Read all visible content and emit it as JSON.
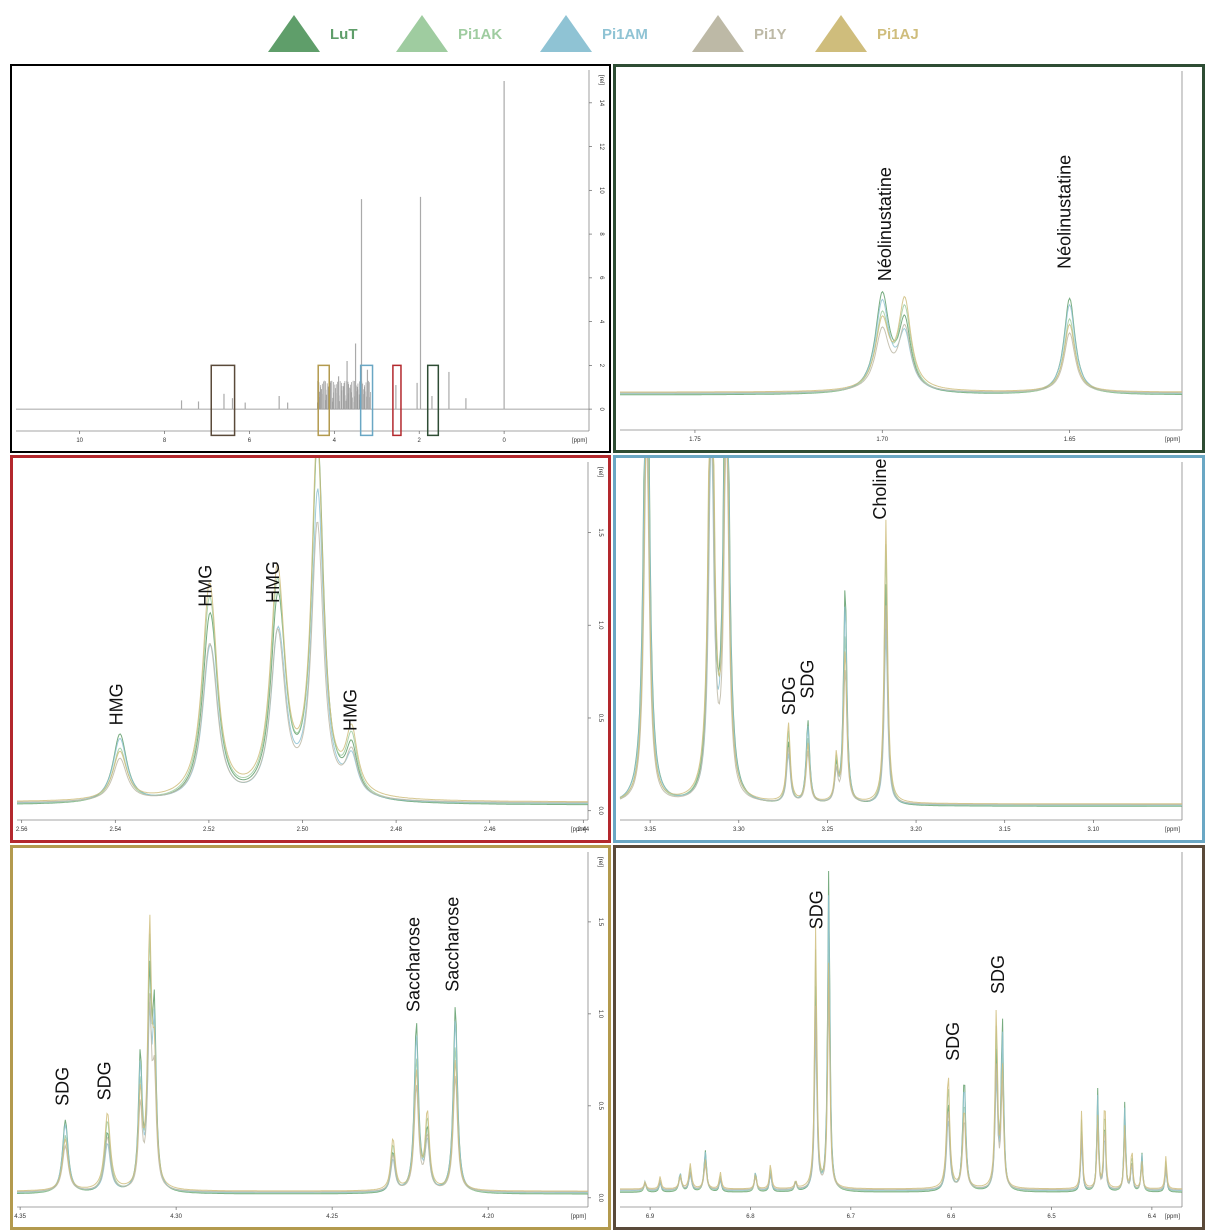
{
  "legend": [
    {
      "name": "LuT",
      "color": "#5f9e6a"
    },
    {
      "name": "Pi1AK",
      "color": "#9fcca0"
    },
    {
      "name": "Pi1AM",
      "color": "#8fc3d4"
    },
    {
      "name": "Pi1Y",
      "color": "#bdb9a6"
    },
    {
      "name": "Pi1AJ",
      "color": "#cfbd7c"
    }
  ],
  "chart_data": [
    {
      "type": "line",
      "panel": "overview",
      "border_color": "#000000",
      "x_ticks": [
        "10",
        "8",
        "6",
        "4",
        "2",
        "0"
      ],
      "x_unit": "[ppm]",
      "xlim": [
        11.5,
        -2
      ],
      "y_ticks": [
        "0",
        "2",
        "4",
        "6",
        "8",
        "10",
        "12",
        "14"
      ],
      "y_unit": "[rel]",
      "ylim": [
        -1,
        15.5
      ],
      "peaks": [
        {
          "x": 7.6,
          "y": 0.4
        },
        {
          "x": 7.2,
          "y": 0.35
        },
        {
          "x": 6.9,
          "y": 0.4
        },
        {
          "x": 6.6,
          "y": 0.7
        },
        {
          "x": 6.4,
          "y": 0.5
        },
        {
          "x": 6.1,
          "y": 0.3
        },
        {
          "x": 5.3,
          "y": 0.6
        },
        {
          "x": 5.1,
          "y": 0.3
        },
        {
          "x": 4.3,
          "y": 0.9
        },
        {
          "x": 4.1,
          "y": 1.2
        },
        {
          "x": 3.9,
          "y": 1.5
        },
        {
          "x": 3.7,
          "y": 2.2
        },
        {
          "x": 3.5,
          "y": 3.0
        },
        {
          "x": 3.36,
          "y": 9.6
        },
        {
          "x": 3.22,
          "y": 1.8
        },
        {
          "x": 2.55,
          "y": 1.1
        },
        {
          "x": 2.05,
          "y": 1.2
        },
        {
          "x": 1.97,
          "y": 9.7
        },
        {
          "x": 1.7,
          "y": 0.6
        },
        {
          "x": 1.3,
          "y": 1.7
        },
        {
          "x": 0.9,
          "y": 0.5
        },
        {
          "x": 0.0,
          "y": 15.0
        }
      ],
      "regions": [
        {
          "from": 6.9,
          "to": 6.35,
          "color": "#5a4a3a"
        },
        {
          "from": 4.38,
          "to": 4.12,
          "color": "#b39a4e"
        },
        {
          "from": 3.38,
          "to": 3.1,
          "color": "#6aa7c4"
        },
        {
          "from": 2.62,
          "to": 2.43,
          "color": "#b3282d"
        },
        {
          "from": 1.8,
          "to": 1.55,
          "color": "#2e4d34"
        }
      ]
    },
    {
      "type": "line",
      "panel": "neolinustatine",
      "border_color": "#2e4d34",
      "x_ticks": [
        "1.75",
        "1.70",
        "1.65"
      ],
      "x_unit": "[ppm]",
      "xlim": [
        1.77,
        1.62
      ],
      "ylim": [
        -0.15,
        1.9
      ],
      "baseline": 0.05,
      "peaks": [
        {
          "x": 1.7,
          "y": 0.55,
          "w": 0.0022
        },
        {
          "x": 1.694,
          "y": 0.5,
          "w": 0.002
        },
        {
          "x": 1.65,
          "y": 0.55,
          "w": 0.0018
        }
      ],
      "annotations": [
        {
          "x": 1.699,
          "y": 0.7,
          "text": "Néolinustatine"
        },
        {
          "x": 1.651,
          "y": 0.77,
          "text": "Néolinustatine"
        }
      ]
    },
    {
      "type": "line",
      "panel": "hmg",
      "border_color": "#b3282d",
      "x_ticks": [
        "2.56",
        "2.54",
        "2.52",
        "2.50",
        "2.48",
        "2.46",
        "2.44"
      ],
      "x_unit": "[ppm]",
      "xlim": [
        2.561,
        2.439
      ],
      "y_ticks": [
        "0.0",
        "0.5",
        "1.0",
        "1.5"
      ],
      "y_unit": "[rel]",
      "ylim": [
        -0.05,
        1.88
      ],
      "baseline": 0.03,
      "peaks": [
        {
          "x": 2.539,
          "y": 0.37,
          "w": 0.0018
        },
        {
          "x": 2.52,
          "y": 1.0,
          "w": 0.0018
        },
        {
          "x": 2.519,
          "y": 0.3,
          "w": 0.0016
        },
        {
          "x": 2.5055,
          "y": 1.02,
          "w": 0.0017
        },
        {
          "x": 2.5045,
          "y": 0.36,
          "w": 0.0016
        },
        {
          "x": 2.497,
          "y": 1.3,
          "w": 0.0014
        },
        {
          "x": 2.4965,
          "y": 0.97,
          "w": 0.0015
        },
        {
          "x": 2.4895,
          "y": 0.33,
          "w": 0.0015
        }
      ],
      "annotations": [
        {
          "x": 2.5395,
          "y": 0.46,
          "text": "HMG"
        },
        {
          "x": 2.5205,
          "y": 1.1,
          "text": "HMG"
        },
        {
          "x": 2.506,
          "y": 1.12,
          "text": "HMG"
        },
        {
          "x": 2.4895,
          "y": 0.43,
          "text": "HMG"
        }
      ]
    },
    {
      "type": "line",
      "panel": "sdg-choline",
      "border_color": "#6aa7c4",
      "x_ticks": [
        "3.35",
        "3.30",
        "3.25",
        "3.20",
        "3.15",
        "3.10"
      ],
      "x_unit": "[ppm]",
      "xlim": [
        3.367,
        3.05
      ],
      "ylim": [
        -0.06,
        2.3
      ],
      "baseline": 0.03,
      "peaks": [
        {
          "x": 3.352,
          "y": 4.0,
          "w": 0.0017
        },
        {
          "x": 3.3155,
          "y": 4.0,
          "w": 0.0016
        },
        {
          "x": 3.307,
          "y": 4.0,
          "w": 0.0016
        },
        {
          "x": 3.272,
          "y": 0.52,
          "w": 0.0012
        },
        {
          "x": 3.261,
          "y": 0.55,
          "w": 0.0012
        },
        {
          "x": 3.245,
          "y": 0.3,
          "w": 0.001
        },
        {
          "x": 3.24,
          "y": 1.45,
          "w": 0.0011
        },
        {
          "x": 3.217,
          "y": 1.87,
          "w": 0.0011
        }
      ],
      "annotations": [
        {
          "x": 3.271,
          "y": 0.63,
          "text": "SDG"
        },
        {
          "x": 3.2605,
          "y": 0.74,
          "text": "SDG"
        },
        {
          "x": 3.2195,
          "y": 1.92,
          "text": "Choline"
        }
      ]
    },
    {
      "type": "line",
      "panel": "sdg-saccharose",
      "border_color": "#b39a4e",
      "x_ticks": [
        "4.35",
        "4.30",
        "4.25",
        "4.20"
      ],
      "x_unit": "[ppm]",
      "xlim": [
        4.351,
        4.168
      ],
      "y_ticks": [
        "0.0",
        "0.5",
        "1.0",
        "1.5"
      ],
      "y_unit": "[rel]",
      "ylim": [
        -0.05,
        1.88
      ],
      "baseline": 0.02,
      "peaks": [
        {
          "x": 4.3355,
          "y": 0.4,
          "w": 0.0011
        },
        {
          "x": 4.322,
          "y": 0.42,
          "w": 0.0011
        },
        {
          "x": 4.3115,
          "y": 0.72,
          "w": 0.0007
        },
        {
          "x": 4.3085,
          "y": 1.37,
          "w": 0.0007
        },
        {
          "x": 4.307,
          "y": 0.9,
          "w": 0.0007
        },
        {
          "x": 4.2305,
          "y": 0.28,
          "w": 0.0008
        },
        {
          "x": 4.223,
          "y": 0.92,
          "w": 0.0008
        },
        {
          "x": 4.2195,
          "y": 0.41,
          "w": 0.0008
        },
        {
          "x": 4.2105,
          "y": 1.02,
          "w": 0.0008
        }
      ],
      "annotations": [
        {
          "x": 4.336,
          "y": 0.5,
          "text": "SDG"
        },
        {
          "x": 4.3225,
          "y": 0.53,
          "text": "SDG"
        },
        {
          "x": 4.2235,
          "y": 1.01,
          "text": "Saccharose"
        },
        {
          "x": 4.211,
          "y": 1.12,
          "text": "Saccharose"
        }
      ]
    },
    {
      "type": "line",
      "panel": "sdg-aromatic",
      "border_color": "#5a4a3a",
      "x_ticks": [
        "6.9",
        "6.8",
        "6.7",
        "6.6",
        "6.5",
        "6.4"
      ],
      "x_unit": "[ppm]",
      "xlim": [
        6.93,
        6.37
      ],
      "ylim": [
        -0.05,
        1.65
      ],
      "baseline": 0.02,
      "peaks": [
        {
          "x": 6.905,
          "y": 0.05,
          "w": 0.0012
        },
        {
          "x": 6.89,
          "y": 0.06,
          "w": 0.0012
        },
        {
          "x": 6.87,
          "y": 0.09,
          "w": 0.0015
        },
        {
          "x": 6.86,
          "y": 0.12,
          "w": 0.0015
        },
        {
          "x": 6.845,
          "y": 0.2,
          "w": 0.0015
        },
        {
          "x": 6.83,
          "y": 0.08,
          "w": 0.0012
        },
        {
          "x": 6.795,
          "y": 0.1,
          "w": 0.0012
        },
        {
          "x": 6.78,
          "y": 0.12,
          "w": 0.0012
        },
        {
          "x": 6.755,
          "y": 0.05,
          "w": 0.0012
        },
        {
          "x": 6.735,
          "y": 1.25,
          "w": 0.0013
        },
        {
          "x": 6.722,
          "y": 1.55,
          "w": 0.0013
        },
        {
          "x": 6.603,
          "y": 0.55,
          "w": 0.0018
        },
        {
          "x": 6.587,
          "y": 0.55,
          "w": 0.0018
        },
        {
          "x": 6.555,
          "y": 0.85,
          "w": 0.0014
        },
        {
          "x": 6.549,
          "y": 0.82,
          "w": 0.0014
        },
        {
          "x": 6.47,
          "y": 0.38,
          "w": 0.001
        },
        {
          "x": 6.454,
          "y": 0.49,
          "w": 0.001
        },
        {
          "x": 6.447,
          "y": 0.47,
          "w": 0.001
        },
        {
          "x": 6.427,
          "y": 0.43,
          "w": 0.001
        },
        {
          "x": 6.42,
          "y": 0.2,
          "w": 0.001
        },
        {
          "x": 6.41,
          "y": 0.19,
          "w": 0.001
        },
        {
          "x": 6.386,
          "y": 0.16,
          "w": 0.001
        }
      ],
      "annotations": [
        {
          "x": 6.733,
          "y": 1.28,
          "text": "SDG"
        },
        {
          "x": 6.597,
          "y": 0.65,
          "text": "SDG"
        },
        {
          "x": 6.552,
          "y": 0.97,
          "text": "SDG"
        }
      ]
    }
  ]
}
